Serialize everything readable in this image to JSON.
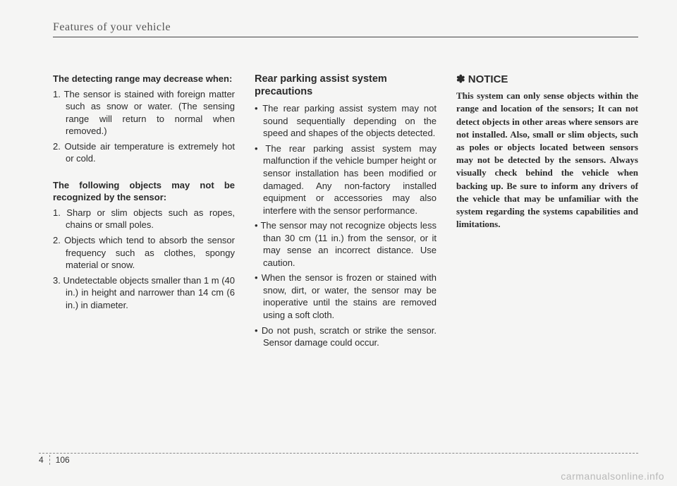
{
  "header": {
    "title": "Features of your vehicle"
  },
  "col1": {
    "h1": "The detecting range may decrease when:",
    "l1": "1. The sensor is stained with foreign matter such as snow or water. (The sensing range will return to normal when removed.)",
    "l2": "2. Outside air temperature is extremely hot or cold.",
    "h2": "The following objects may not be recognized by the sensor:",
    "l3": "1. Sharp or slim objects such as ropes, chains or small poles.",
    "l4": "2. Objects which tend to absorb the sensor frequency such as clothes, spongy material or snow.",
    "l5": "3. Undetectable objects smaller than 1 m (40 in.) in height and narrower than 14 cm (6 in.) in diameter."
  },
  "col2": {
    "h1": "Rear parking assist system precautions",
    "b1": "• The rear parking assist system may not sound sequentially depending on the speed and shapes of the objects detected.",
    "b2": "• The rear parking assist system may malfunction if the vehicle bumper height or sensor installation has been modified or damaged. Any non-factory installed equipment or accessories may also interfere with the sensor performance.",
    "b3": "• The sensor may not recognize objects less than 30 cm (11 in.) from the sensor, or it may sense an incorrect distance.  Use caution.",
    "b4": "• When the sensor is frozen or stained with snow, dirt, or water, the sensor may be inoperative until the stains are removed using a soft cloth.",
    "b5": "• Do not push, scratch or strike the sensor. Sensor damage could occur."
  },
  "col3": {
    "notice_label": "✽ NOTICE",
    "notice_body": "This system can only sense objects within the range and location of the sensors; It can not detect objects in other areas where sensors are not installed. Also, small or slim objects, such as poles or objects located between sensors may not be detected by the sensors. Always visually check behind the vehicle when backing up. Be sure to inform any drivers of the vehicle that may be unfamiliar with the system regarding the systems capabilities and limitations."
  },
  "footer": {
    "section": "4",
    "page": "106"
  },
  "watermark": "carmanualsonline.info"
}
